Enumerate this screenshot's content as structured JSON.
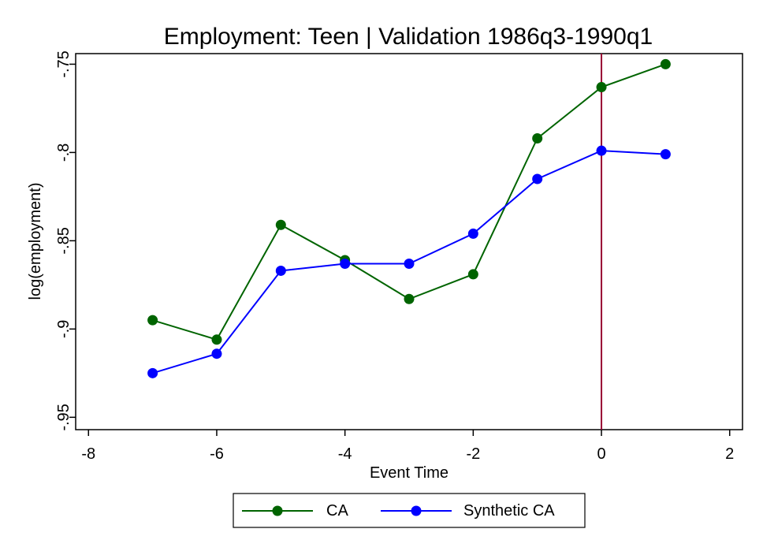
{
  "chart_data": {
    "type": "line",
    "title": "Employment: Teen | Validation 1986q3-1990q1",
    "xlabel": "Event Time",
    "ylabel": "log(employment)",
    "xlim": [
      -8.2,
      2.2
    ],
    "ylim": [
      -0.957,
      -0.744
    ],
    "x_ticks": [
      -8,
      -6,
      -4,
      -2,
      0,
      2
    ],
    "x_tick_labels": [
      "-8",
      "-6",
      "-4",
      "-2",
      "0",
      "2"
    ],
    "y_ticks": [
      -0.95,
      -0.9,
      -0.85,
      -0.8,
      -0.75
    ],
    "y_tick_labels": [
      "-.95",
      "-.9",
      "-.85",
      "-.8",
      "-.75"
    ],
    "grid": false,
    "vertical_line": {
      "x": 0,
      "color": "#990033"
    },
    "legend": {
      "placement": "bottom"
    },
    "x": [
      -7,
      -6,
      -5,
      -4,
      -3,
      -2,
      -1,
      0,
      1
    ],
    "series": [
      {
        "name": "CA",
        "color": "#006400",
        "values": [
          -0.895,
          -0.906,
          -0.841,
          -0.861,
          -0.883,
          -0.869,
          -0.792,
          -0.763,
          -0.75
        ]
      },
      {
        "name": "Synthetic CA",
        "color": "#0000ff",
        "values": [
          -0.925,
          -0.914,
          -0.867,
          -0.863,
          -0.863,
          -0.846,
          -0.815,
          -0.799,
          -0.801
        ]
      }
    ]
  }
}
